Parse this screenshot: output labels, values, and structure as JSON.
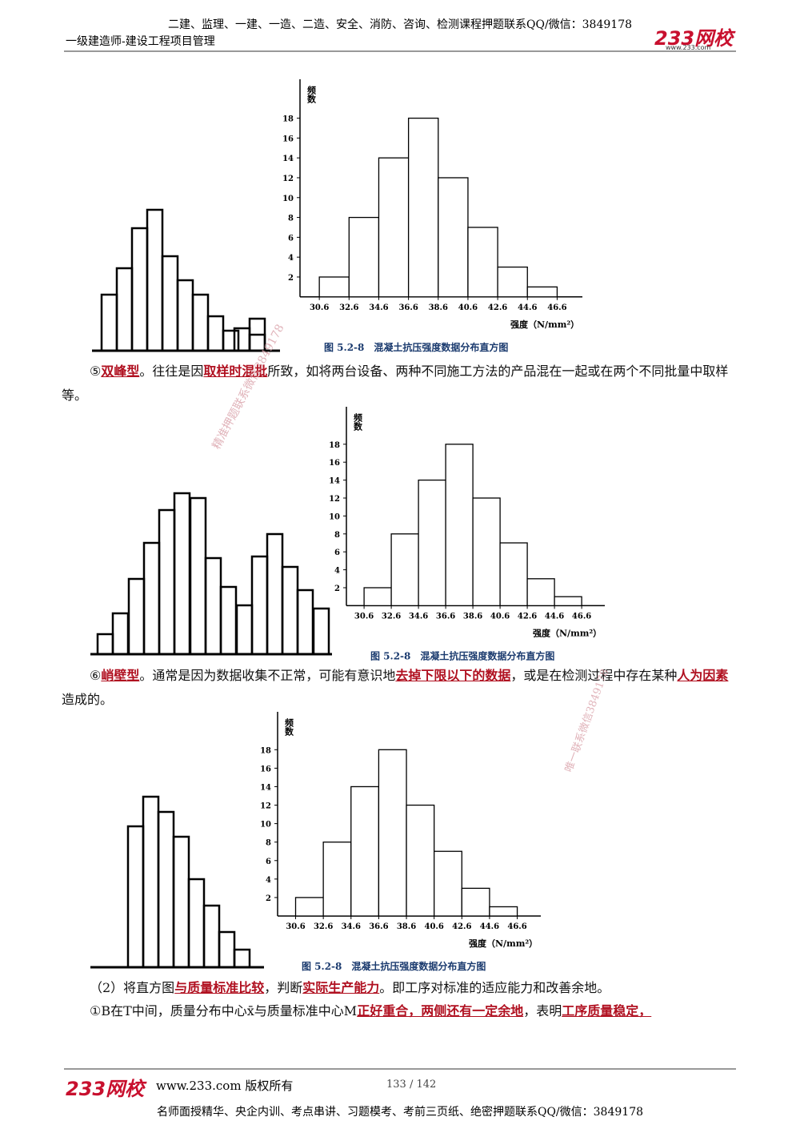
{
  "header": {
    "line1": "二建、监理、一建、一造、二造、安全、消防、咨询、检测课程押题联系QQ/微信：3849178",
    "line2": "一级建造师-建设工程项目管理",
    "logo": "233网校",
    "logo_url": "www.233.com"
  },
  "figures": [
    {
      "type": "histogram",
      "y_label": "频数",
      "x_label": "强度（N/mm²）",
      "caption": "图 5.2-8　混凝土抗压强度数据分布直方图",
      "bins": [
        30.6,
        32.6,
        34.6,
        36.6,
        38.6,
        40.6,
        42.6,
        44.6,
        46.6
      ],
      "values": [
        2,
        8,
        14,
        18,
        12,
        7,
        3,
        1
      ],
      "xlim": [
        29.3,
        48.3
      ],
      "xticks": [
        30.6,
        32.6,
        34.6,
        36.6,
        38.6,
        40.6,
        42.6,
        44.6,
        46.6
      ],
      "ylim": [
        0,
        19.5
      ],
      "yticks": [
        2,
        4,
        6,
        8,
        10,
        12,
        14,
        16,
        18
      ]
    },
    {
      "type": "histogram",
      "y_label": "频数",
      "x_label": "强度（N/mm²）",
      "caption": "图 5.2-8　混凝土抗压强度数据分布直方图",
      "bins": [
        30.6,
        32.6,
        34.6,
        36.6,
        38.6,
        40.6,
        42.6,
        44.6,
        46.6
      ],
      "values": [
        2,
        8,
        14,
        18,
        12,
        7,
        3,
        1
      ],
      "xlim": [
        29.3,
        48.3
      ],
      "xticks": [
        30.6,
        32.6,
        34.6,
        36.6,
        38.6,
        40.6,
        42.6,
        44.6,
        46.6
      ],
      "ylim": [
        0,
        19.5
      ],
      "yticks": [
        2,
        4,
        6,
        8,
        10,
        12,
        14,
        16,
        18
      ]
    },
    {
      "type": "histogram",
      "y_label": "频数",
      "x_label": "强度（N/mm²）",
      "caption": "图 5.2-8　混凝土抗压强度数据分布直方图",
      "bins": [
        30.6,
        32.6,
        34.6,
        36.6,
        38.6,
        40.6,
        42.6,
        44.6,
        46.6
      ],
      "values": [
        2,
        8,
        14,
        18,
        12,
        7,
        3,
        1
      ],
      "xlim": [
        29.3,
        48.3
      ],
      "xticks": [
        30.6,
        32.6,
        34.6,
        36.6,
        38.6,
        40.6,
        42.6,
        44.6,
        46.6
      ],
      "ylim": [
        0,
        19.5
      ],
      "yticks": [
        2,
        4,
        6,
        8,
        10,
        12,
        14,
        16,
        18
      ]
    }
  ],
  "paragraphs": [
    [
      "⑤",
      "双峰型",
      "。往往是因",
      "取样时混批",
      "所致，如将两台设备、两种不同施工方法的产品混在一起或在两个不同批量中取样等。"
    ],
    [
      "⑥",
      "峭壁型",
      "。通常是因为数据收集不正常，可能有意识地",
      "去掉下限以下的数据",
      "，或是在检测过程中存在某种",
      "人为因素",
      "造成的。"
    ],
    [
      "（2）将直方图",
      "与质量标准比较",
      "，判断",
      "实际生产能力",
      "。即工序对标准的适应能力和改善余地。"
    ],
    [
      "①B在T中间，质量分布中心x̄与质量标准中心M",
      "正好重合，两侧还有一定余地",
      "，表明",
      "工序质量稳定，"
    ]
  ],
  "watermarks": [
    "精准押题联系微信3849178",
    "唯一联系微信3849178"
  ],
  "footer": {
    "logo": "233网校",
    "copyright": "www.233.com 版权所有",
    "page": "133 / 142",
    "line": "名师面授精华、央企内训、考点串讲、习题模考、考前三页纸、绝密押题联系QQ/微信：3849178"
  }
}
